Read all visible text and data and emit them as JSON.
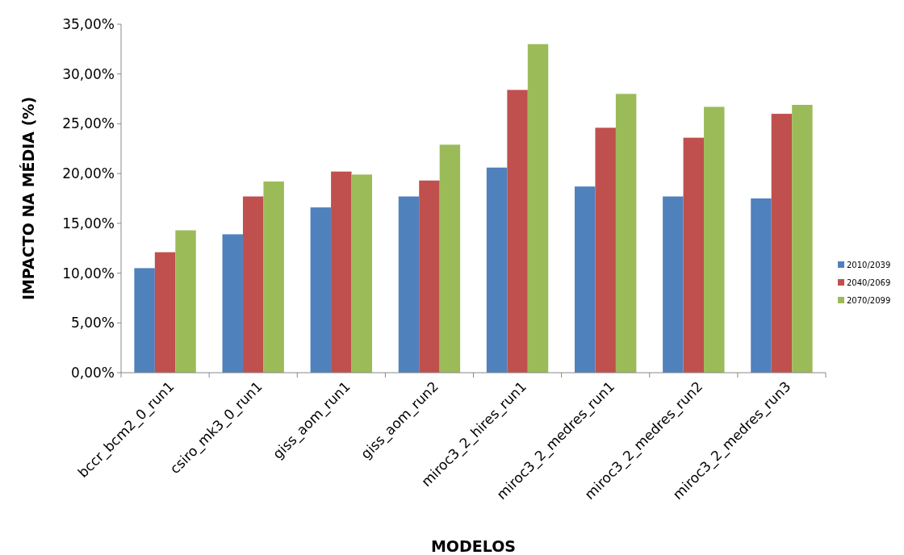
{
  "chart_data": {
    "type": "bar",
    "xlabel": "MODELOS",
    "ylabel": "IMPACTO NA MÉDIA (%)",
    "categories": [
      "bccr_bcm2_0_run1",
      "csiro_mk3_0_run1",
      "giss_aom_run1",
      "giss_aom_run2",
      "miroc3_2_hires_run1",
      "miroc3_2_medres_run1",
      "miroc3_2_medres_run2",
      "miroc3_2_medres_run3"
    ],
    "series": [
      {
        "name": "2010/2039",
        "color": "#4f81bd",
        "values": [
          10.5,
          13.9,
          16.6,
          17.7,
          20.6,
          18.7,
          17.7,
          17.5
        ]
      },
      {
        "name": "2040/2069",
        "color": "#c0504d",
        "values": [
          12.1,
          17.7,
          20.2,
          19.3,
          28.4,
          24.6,
          23.6,
          26.0
        ]
      },
      {
        "name": "2070/2099",
        "color": "#9bbb59",
        "values": [
          14.3,
          19.2,
          19.9,
          22.9,
          33.0,
          28.0,
          26.7,
          26.9
        ]
      }
    ],
    "ylim": [
      0,
      35
    ],
    "yticks": [
      {
        "value": 0,
        "label": "0,00%"
      },
      {
        "value": 5,
        "label": "5,00%"
      },
      {
        "value": 10,
        "label": "10,00%"
      },
      {
        "value": 15,
        "label": "15,00%"
      },
      {
        "value": 20,
        "label": "20,00%"
      },
      {
        "value": 25,
        "label": "25,00%"
      },
      {
        "value": 30,
        "label": "30,00%"
      },
      {
        "value": 35,
        "label": "35,00%"
      }
    ],
    "legend": "right"
  }
}
